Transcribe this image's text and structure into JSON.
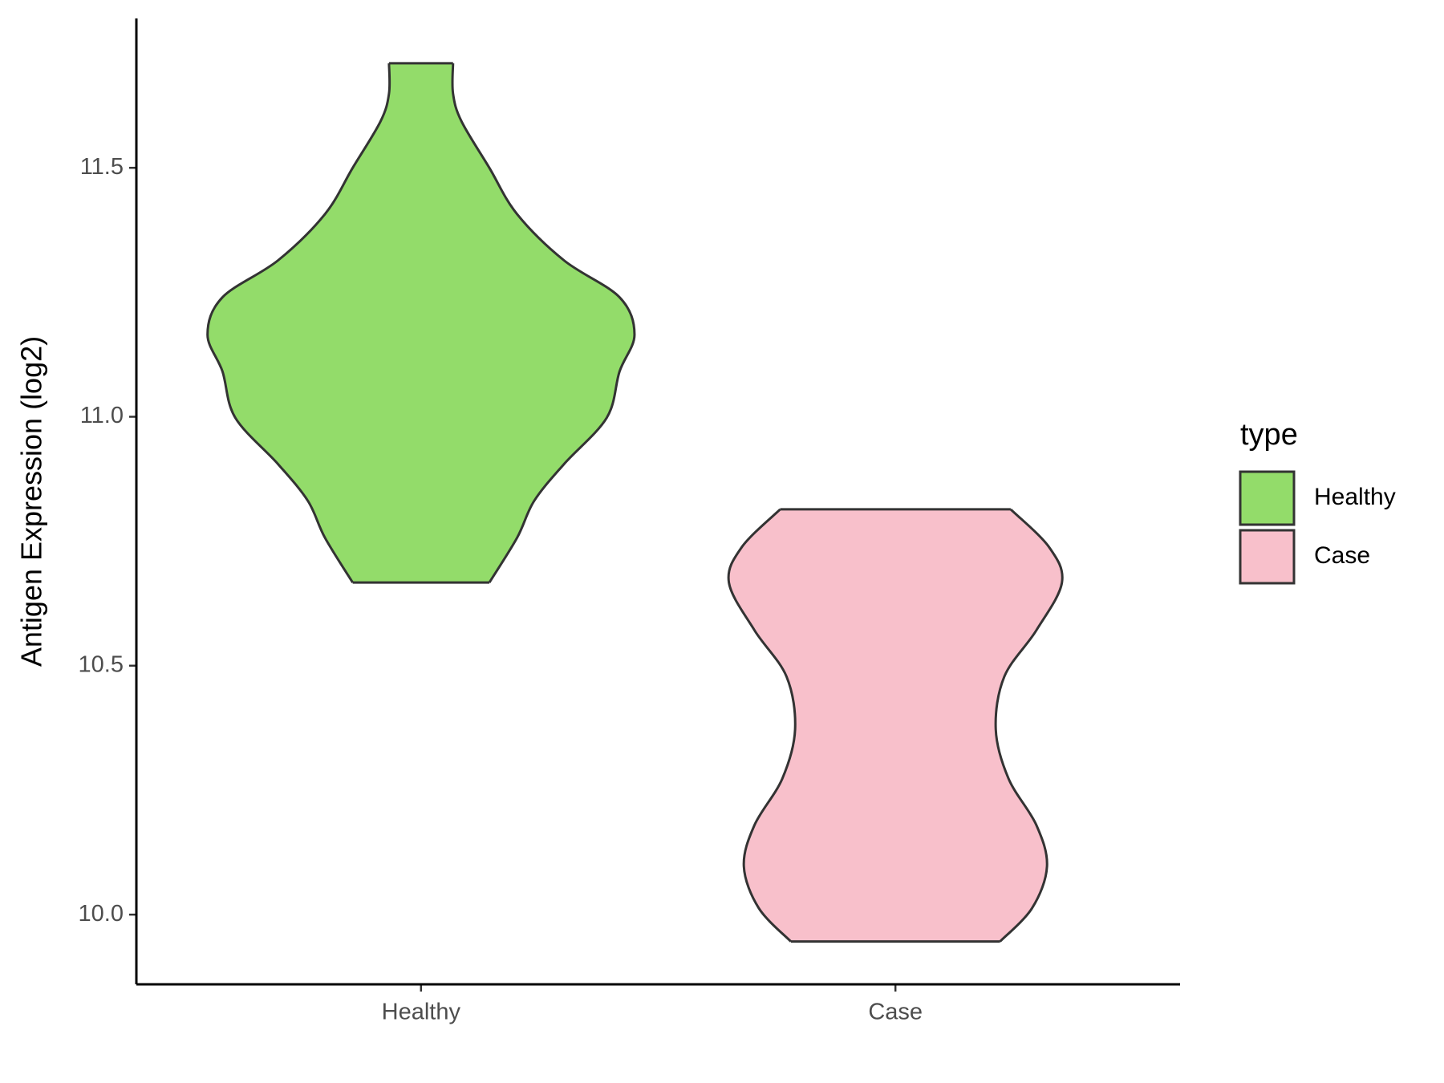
{
  "chart_data": {
    "type": "violin",
    "y_label": "Antigen Expression (log2)",
    "legend_title": "type",
    "categories": [
      "Healthy",
      "Case"
    ],
    "series": [
      {
        "name": "Healthy",
        "color": "#93dc6a",
        "y": [
          11.71,
          11.649,
          11.593,
          11.5,
          11.407,
          11.314,
          11.24,
          11.165,
          11.091,
          10.998,
          10.905,
          10.831,
          10.757,
          10.667
        ],
        "width": [
          0.15,
          0.15,
          0.19,
          0.32,
          0.45,
          0.67,
          0.93,
          1.0,
          0.93,
          0.87,
          0.67,
          0.53,
          0.45,
          0.32
        ]
      },
      {
        "name": "Case",
        "color": "#f8c0cb",
        "y": [
          10.814,
          10.738,
          10.667,
          10.571,
          10.478,
          10.372,
          10.273,
          10.18,
          10.097,
          10.013,
          9.946
        ],
        "width": [
          0.54,
          0.72,
          0.78,
          0.66,
          0.51,
          0.47,
          0.53,
          0.66,
          0.71,
          0.64,
          0.49
        ]
      }
    ],
    "ylim": [
      9.86,
      11.8
    ],
    "yticks": [
      {
        "value": 10,
        "label": "10.0"
      },
      10.5,
      {
        "value": 11,
        "label": "11.0"
      },
      11.5
    ],
    "legend_position": "right"
  }
}
